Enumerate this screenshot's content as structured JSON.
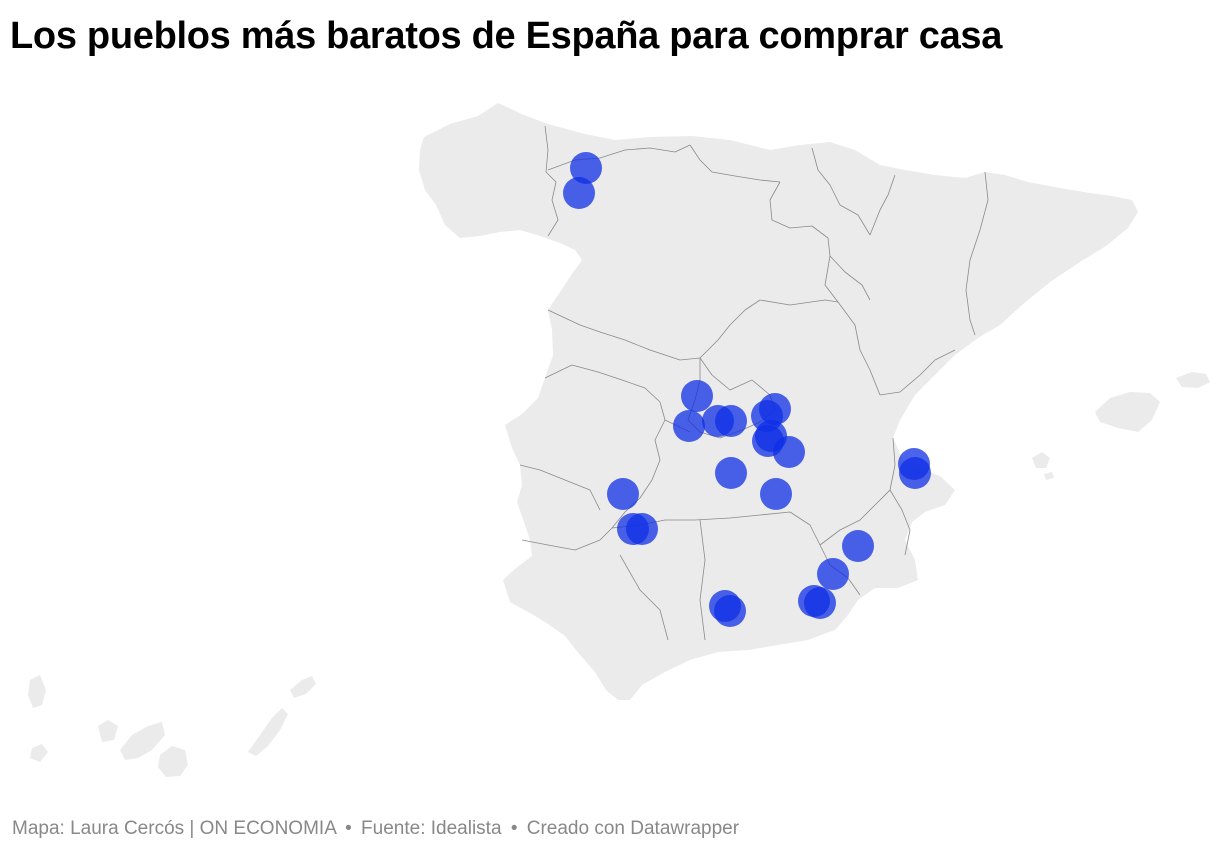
{
  "title": "Los pueblos más baratos de España para comprar casa",
  "map": {
    "region": "España",
    "marker_color": "#0d2ee6",
    "land_color": "#ebebeb",
    "border_color": "#8a8a8a",
    "marker_count": 27
  },
  "footer": {
    "author": "Mapa: Laura Cercós | ON ECONOMIA",
    "source": "Fuente: Idealista",
    "tool": "Creado con Datawrapper",
    "separator": "•"
  }
}
